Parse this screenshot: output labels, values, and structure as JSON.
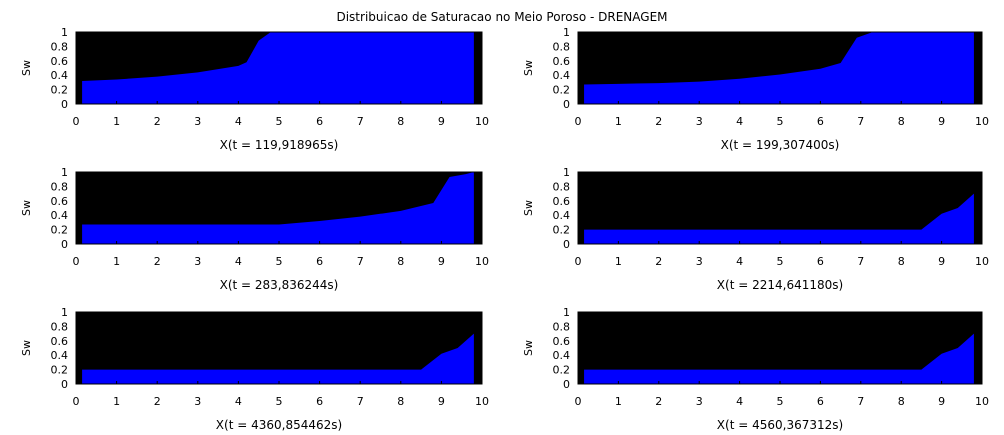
{
  "figure": {
    "title": "Distribuicao de Saturacao no Meio Poroso - DRENAGEM"
  },
  "chart_data": [
    {
      "type": "area",
      "title": "",
      "xlabel": "X(t = 119,918965s)",
      "ylabel": "Sw",
      "xlim": [
        0,
        10
      ],
      "ylim": [
        0,
        1
      ],
      "xticks": [
        "0",
        "1",
        "2",
        "3",
        "4",
        "5",
        "6",
        "7",
        "8",
        "9",
        "10"
      ],
      "yticks": [
        "0",
        "0.2",
        "0.4",
        "0.6",
        "0.8",
        "1"
      ],
      "grid": false,
      "legend": "none",
      "colors": {
        "fill": "#0000ff",
        "background": "#000000"
      },
      "x": [
        0.15,
        1,
        2,
        3,
        4,
        4.2,
        4.5,
        4.8,
        5.0,
        9.8
      ],
      "y": [
        0.32,
        0.34,
        0.38,
        0.44,
        0.53,
        0.58,
        0.88,
        1.0,
        1.0,
        1.0
      ]
    },
    {
      "type": "area",
      "title": "",
      "xlabel": "X(t = 199,307400s)",
      "ylabel": "Sw",
      "xlim": [
        0,
        10
      ],
      "ylim": [
        0,
        1
      ],
      "xticks": [
        "0",
        "1",
        "2",
        "3",
        "4",
        "5",
        "6",
        "7",
        "8",
        "9",
        "10"
      ],
      "yticks": [
        "0",
        "0.2",
        "0.4",
        "0.6",
        "0.8",
        "1"
      ],
      "grid": false,
      "legend": "none",
      "colors": {
        "fill": "#0000ff",
        "background": "#000000"
      },
      "x": [
        0.15,
        1,
        2,
        3,
        4,
        5,
        6,
        6.5,
        6.9,
        7.3,
        9.8
      ],
      "y": [
        0.27,
        0.28,
        0.29,
        0.31,
        0.35,
        0.41,
        0.49,
        0.57,
        0.92,
        1.0,
        1.0
      ]
    },
    {
      "type": "area",
      "title": "",
      "xlabel": "X(t = 283,836244s)",
      "ylabel": "Sw",
      "xlim": [
        0,
        10
      ],
      "ylim": [
        0,
        1
      ],
      "xticks": [
        "0",
        "1",
        "2",
        "3",
        "4",
        "5",
        "6",
        "7",
        "8",
        "9",
        "10"
      ],
      "yticks": [
        "0",
        "0.2",
        "0.4",
        "0.6",
        "0.8",
        "1"
      ],
      "grid": false,
      "legend": "none",
      "colors": {
        "fill": "#0000ff",
        "background": "#000000"
      },
      "x": [
        0.15,
        1,
        2,
        3,
        4,
        5,
        6,
        7,
        8,
        8.8,
        9.2,
        9.6,
        9.8
      ],
      "y": [
        0.27,
        0.27,
        0.27,
        0.27,
        0.27,
        0.27,
        0.32,
        0.38,
        0.46,
        0.57,
        0.93,
        0.97,
        1.0
      ]
    },
    {
      "type": "area",
      "title": "",
      "xlabel": "X(t = 2214,641180s)",
      "ylabel": "Sw",
      "xlim": [
        0,
        10
      ],
      "ylim": [
        0,
        1
      ],
      "xticks": [
        "0",
        "1",
        "2",
        "3",
        "4",
        "5",
        "6",
        "7",
        "8",
        "9",
        "10"
      ],
      "yticks": [
        "0",
        "0.2",
        "0.4",
        "0.6",
        "0.8",
        "1"
      ],
      "grid": false,
      "legend": "none",
      "colors": {
        "fill": "#0000ff",
        "background": "#000000"
      },
      "x": [
        0.15,
        8.5,
        9.0,
        9.4,
        9.8
      ],
      "y": [
        0.2,
        0.2,
        0.42,
        0.5,
        0.7
      ]
    },
    {
      "type": "area",
      "title": "",
      "xlabel": "X(t = 4360,854462s)",
      "ylabel": "Sw",
      "xlim": [
        0,
        10
      ],
      "ylim": [
        0,
        1
      ],
      "xticks": [
        "0",
        "1",
        "2",
        "3",
        "4",
        "5",
        "6",
        "7",
        "8",
        "9",
        "10"
      ],
      "yticks": [
        "0",
        "0.2",
        "0.4",
        "0.6",
        "0.8",
        "1"
      ],
      "grid": false,
      "legend": "none",
      "colors": {
        "fill": "#0000ff",
        "background": "#000000"
      },
      "x": [
        0.15,
        8.5,
        9.0,
        9.4,
        9.8
      ],
      "y": [
        0.2,
        0.2,
        0.42,
        0.5,
        0.7
      ]
    },
    {
      "type": "area",
      "title": "",
      "xlabel": "X(t = 4560,367312s)",
      "ylabel": "Sw",
      "xlim": [
        0,
        10
      ],
      "ylim": [
        0,
        1
      ],
      "xticks": [
        "0",
        "1",
        "2",
        "3",
        "4",
        "5",
        "6",
        "7",
        "8",
        "9",
        "10"
      ],
      "yticks": [
        "0",
        "0.2",
        "0.4",
        "0.6",
        "0.8",
        "1"
      ],
      "grid": false,
      "legend": "none",
      "colors": {
        "fill": "#0000ff",
        "background": "#000000"
      },
      "x": [
        0.15,
        8.5,
        9.0,
        9.4,
        9.8
      ],
      "y": [
        0.2,
        0.2,
        0.42,
        0.5,
        0.7
      ]
    }
  ]
}
